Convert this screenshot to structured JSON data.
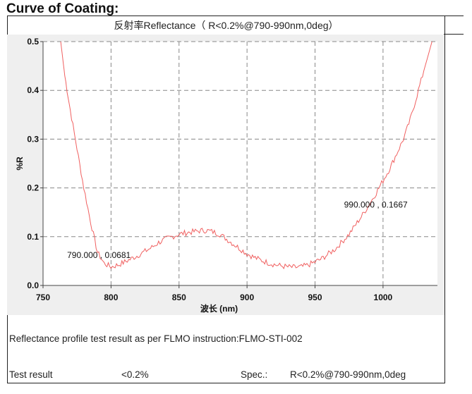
{
  "page_title": "Curve of Coating:",
  "chart_data": {
    "type": "line",
    "title": "反射率Reflectance（ R<0.2%@790-990nm,0deg）",
    "xlabel": "波长 (nm)",
    "ylabel": "%R",
    "xlim": [
      750,
      1040
    ],
    "ylim": [
      0,
      0.5
    ],
    "xticks": [
      "750",
      "800",
      "850",
      "900",
      "950",
      "1000"
    ],
    "yticks": [
      "0.0",
      "0.1",
      "0.2",
      "0.3",
      "0.4",
      "0.5"
    ],
    "grid": true,
    "line_color": "#f06060",
    "series": [
      {
        "x": [
          763,
          766,
          770,
          775,
          780,
          785,
          790,
          795,
          800,
          805,
          810,
          815,
          820,
          825,
          830,
          835,
          840,
          845,
          850,
          855,
          860,
          865,
          870,
          875,
          880,
          885,
          890,
          895,
          900,
          905,
          910,
          915,
          920,
          925,
          930,
          935,
          940,
          945,
          950,
          955,
          960,
          965,
          970,
          975,
          980,
          985,
          990,
          995,
          1000,
          1005,
          1010,
          1015,
          1020,
          1025,
          1030,
          1036
        ],
        "y": [
          0.5,
          0.43,
          0.36,
          0.28,
          0.2,
          0.13,
          0.0681,
          0.045,
          0.038,
          0.042,
          0.048,
          0.055,
          0.062,
          0.07,
          0.078,
          0.088,
          0.095,
          0.1,
          0.105,
          0.108,
          0.11,
          0.112,
          0.113,
          0.11,
          0.105,
          0.095,
          0.085,
          0.075,
          0.065,
          0.058,
          0.052,
          0.047,
          0.043,
          0.04,
          0.038,
          0.037,
          0.038,
          0.042,
          0.048,
          0.055,
          0.065,
          0.075,
          0.09,
          0.105,
          0.125,
          0.145,
          0.1667,
          0.19,
          0.215,
          0.24,
          0.27,
          0.3,
          0.34,
          0.39,
          0.44,
          0.5
        ]
      }
    ],
    "annotations": [
      "790.000 , 0.0681",
      "990.000 , 0.1667"
    ]
  },
  "footer": {
    "note": "Reflectance profile test result as per  FLMO instruction:FLMO-STI-002",
    "result_label": "Test result",
    "result_value": "<0.2%",
    "spec_label": "Spec.:",
    "spec_value": "R<0.2%@790-990nm,0deg"
  }
}
